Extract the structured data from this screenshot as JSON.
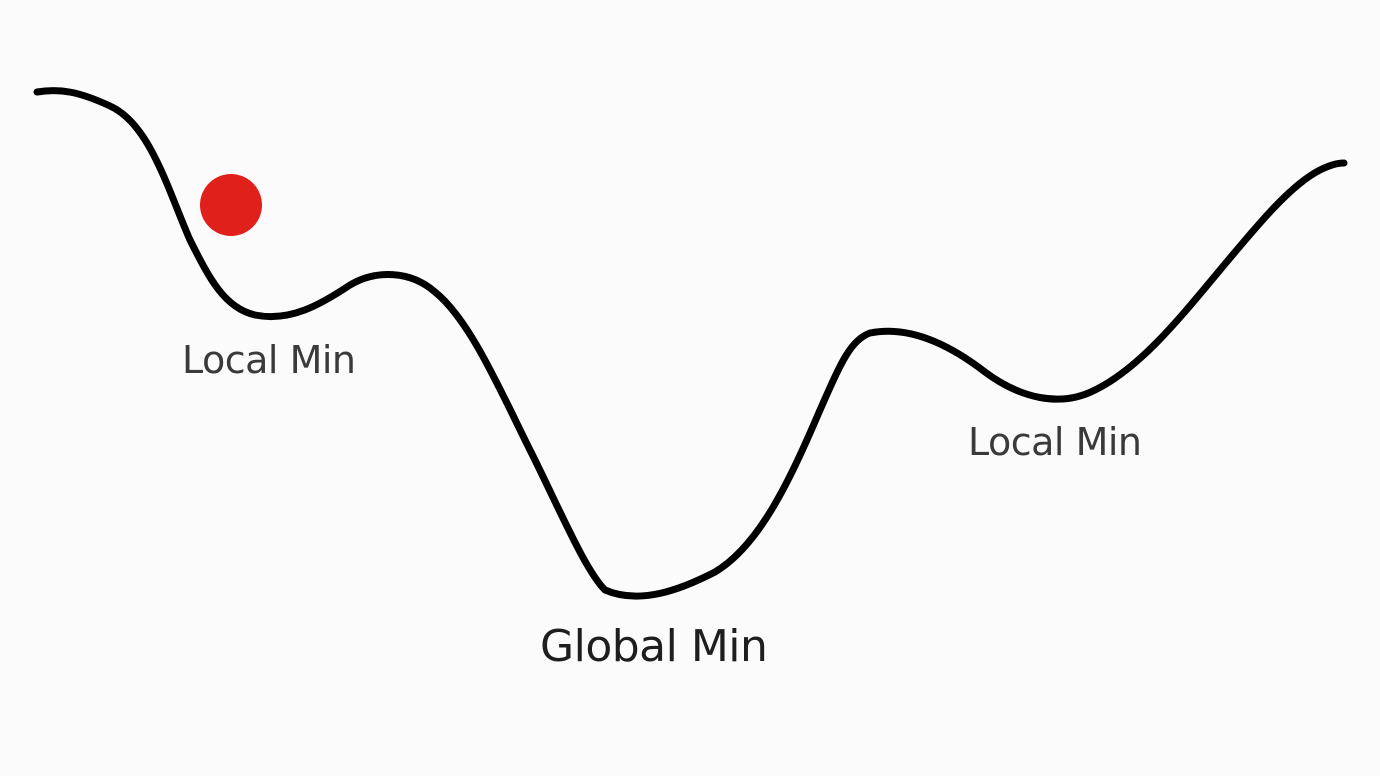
{
  "labels": {
    "local_min_left": "Local Min",
    "global_min": "Global Min",
    "local_min_right": "Local Min"
  },
  "colors": {
    "curve": "#000000",
    "ball": "#e0201b",
    "background": "#fbfbfc",
    "text": "#2b2b2b"
  }
}
